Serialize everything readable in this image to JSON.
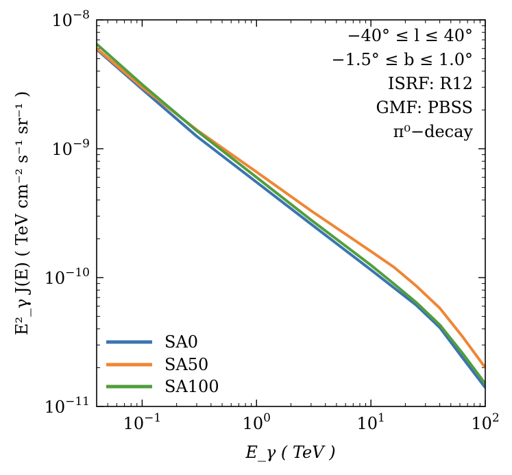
{
  "chart_data": {
    "type": "line",
    "xscale": "log",
    "yscale": "log",
    "xlim": [
      0.04,
      100
    ],
    "ylim": [
      1e-11,
      1e-08
    ],
    "xlabel": "E_γ ( TeV )",
    "ylabel": "E²_γ J(E) ( TeV cm⁻² s⁻¹ sr⁻¹ )",
    "x_ticks": [
      {
        "value": 0.1,
        "base": "10",
        "exp": "−1"
      },
      {
        "value": 1,
        "base": "10",
        "exp": "0"
      },
      {
        "value": 10,
        "base": "10",
        "exp": "1"
      },
      {
        "value": 100,
        "base": "10",
        "exp": "2"
      }
    ],
    "y_ticks": [
      {
        "value": 1e-11,
        "base": "10",
        "exp": "−11"
      },
      {
        "value": 1e-10,
        "base": "10",
        "exp": "−10"
      },
      {
        "value": 1e-09,
        "base": "10",
        "exp": "−9"
      },
      {
        "value": 1e-08,
        "base": "10",
        "exp": "−8"
      }
    ],
    "annotations": [
      "−40° ≤ l ≤ 40°",
      "−1.5° ≤ b ≤ 1.0°",
      "ISRF: R12",
      "GMF: PBSS",
      "π⁰−decay"
    ],
    "legend_position": "lower-left",
    "grid": false,
    "series": [
      {
        "name": "SA0",
        "color": "#3b75af",
        "x": [
          0.04,
          0.1,
          0.3,
          1,
          3,
          10,
          16,
          25,
          40,
          63,
          100
        ],
        "y": [
          5.9e-09,
          2.9e-09,
          1.25e-09,
          5.5e-10,
          2.6e-10,
          1.15e-10,
          8.3e-11,
          6.1e-11,
          4.1e-11,
          2.4e-11,
          1.4e-11
        ]
      },
      {
        "name": "SA50",
        "color": "#ef8636",
        "x": [
          0.04,
          0.1,
          0.3,
          1,
          3,
          10,
          16,
          25,
          40,
          63,
          100
        ],
        "y": [
          6e-09,
          3e-09,
          1.4e-09,
          6.6e-10,
          3.3e-10,
          1.6e-10,
          1.2e-10,
          8.6e-11,
          5.8e-11,
          3.5e-11,
          2e-11
        ]
      },
      {
        "name": "SA100",
        "color": "#519e3e",
        "x": [
          0.04,
          0.1,
          0.3,
          1,
          3,
          10,
          16,
          25,
          40,
          63,
          100
        ],
        "y": [
          6.5e-09,
          3.15e-09,
          1.38e-09,
          6e-10,
          2.8e-10,
          1.25e-10,
          8.9e-11,
          6.4e-11,
          4.3e-11,
          2.6e-11,
          1.5e-11
        ]
      }
    ]
  }
}
